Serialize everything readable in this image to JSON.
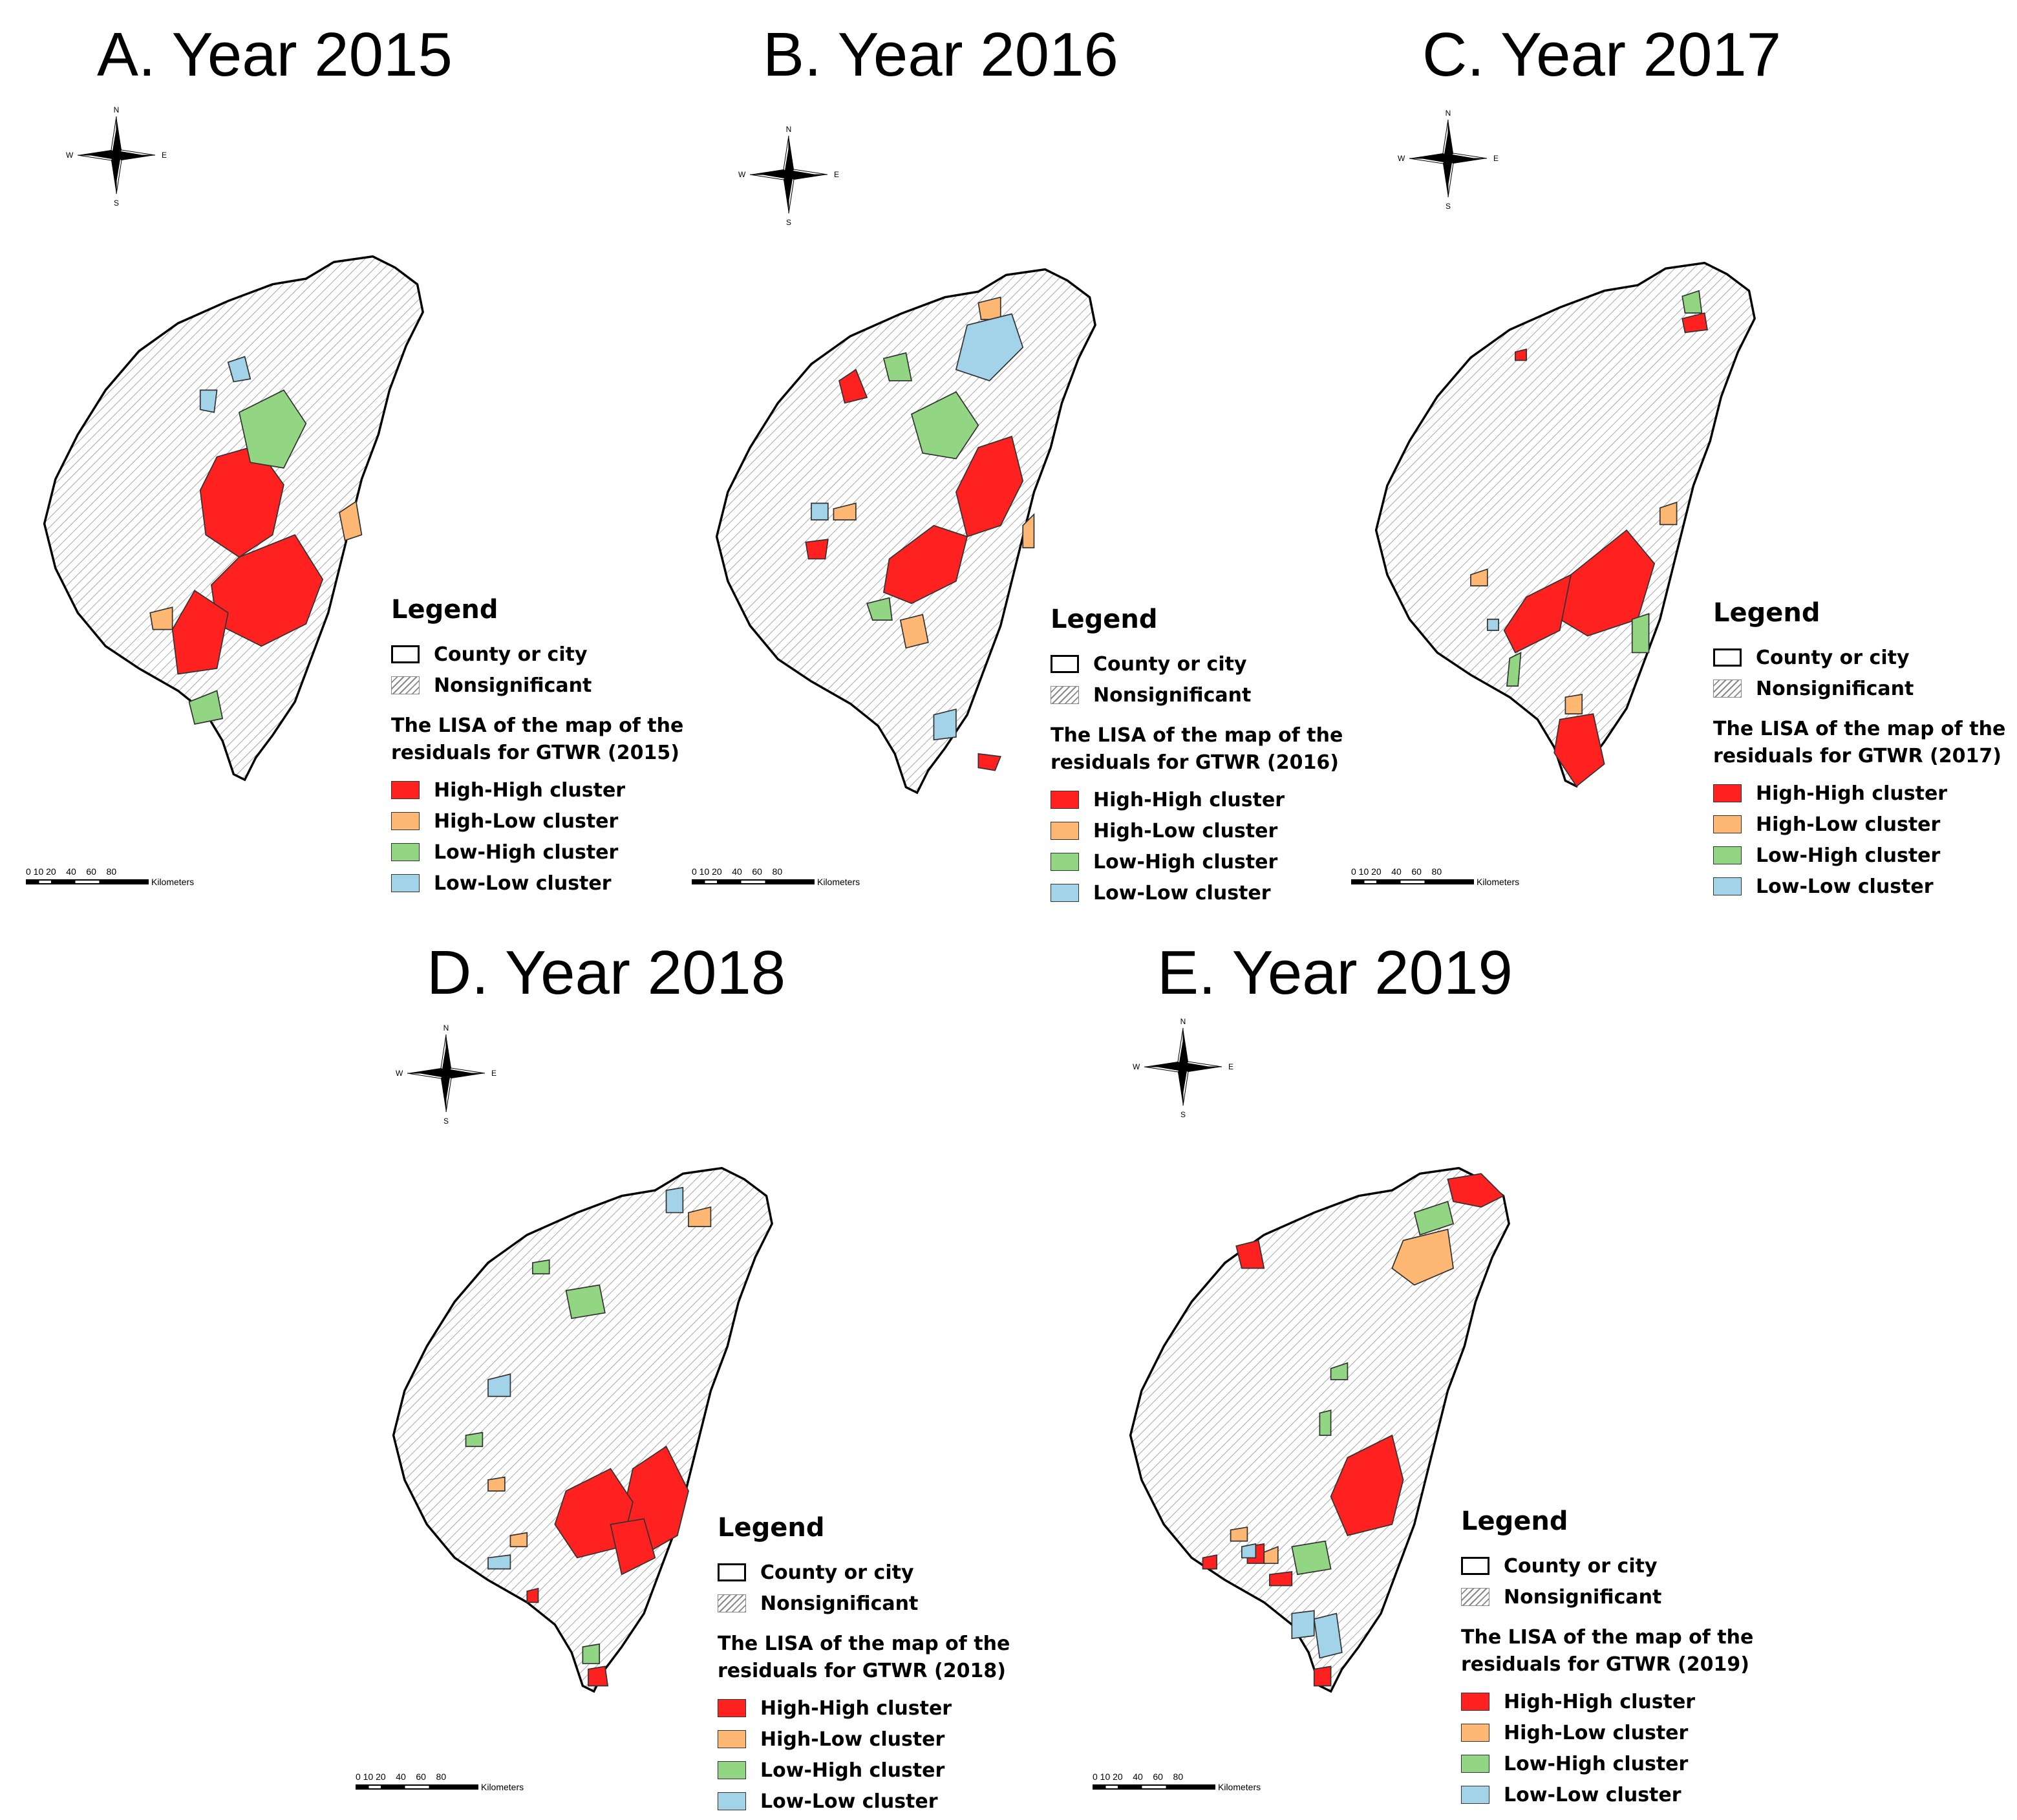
{
  "colors": {
    "high_high": "#ff2020",
    "high_low": "#ffb774",
    "low_high": "#92d684",
    "low_low": "#a2d3e8",
    "outline": "#000000",
    "district": "#a6a6a6"
  },
  "compass": {
    "n": "N",
    "s": "S",
    "e": "E",
    "w": "W"
  },
  "scale": {
    "ticks": "0 10 20    40    60    80",
    "unit": "Kilometers"
  },
  "legend_common": {
    "heading": "Legend",
    "county": "County or city",
    "nonsignificant": "Nonsignificant",
    "high_high": "High-High cluster",
    "high_low": "High-Low cluster",
    "low_high": "Low-High cluster",
    "low_low": "Low-Low cluster"
  },
  "panels": [
    {
      "title": "A. Year 2015",
      "lisa_line1": "The LISA of the map of the",
      "lisa_line2": "residuals for GTWR (2015)"
    },
    {
      "title": "B. Year 2016",
      "lisa_line1": "The LISA of the map of the",
      "lisa_line2": "residuals for GTWR (2016)"
    },
    {
      "title": "C. Year 2017",
      "lisa_line1": "The LISA of the map of the",
      "lisa_line2": "residuals for GTWR (2017)"
    },
    {
      "title": "D. Year 2018",
      "lisa_line1": "The LISA of the map of the",
      "lisa_line2": "residuals for GTWR (2018)"
    },
    {
      "title": "E. Year 2019",
      "lisa_line1": "The LISA of the map of the",
      "lisa_line2": "residuals for GTWR (2019)"
    }
  ]
}
